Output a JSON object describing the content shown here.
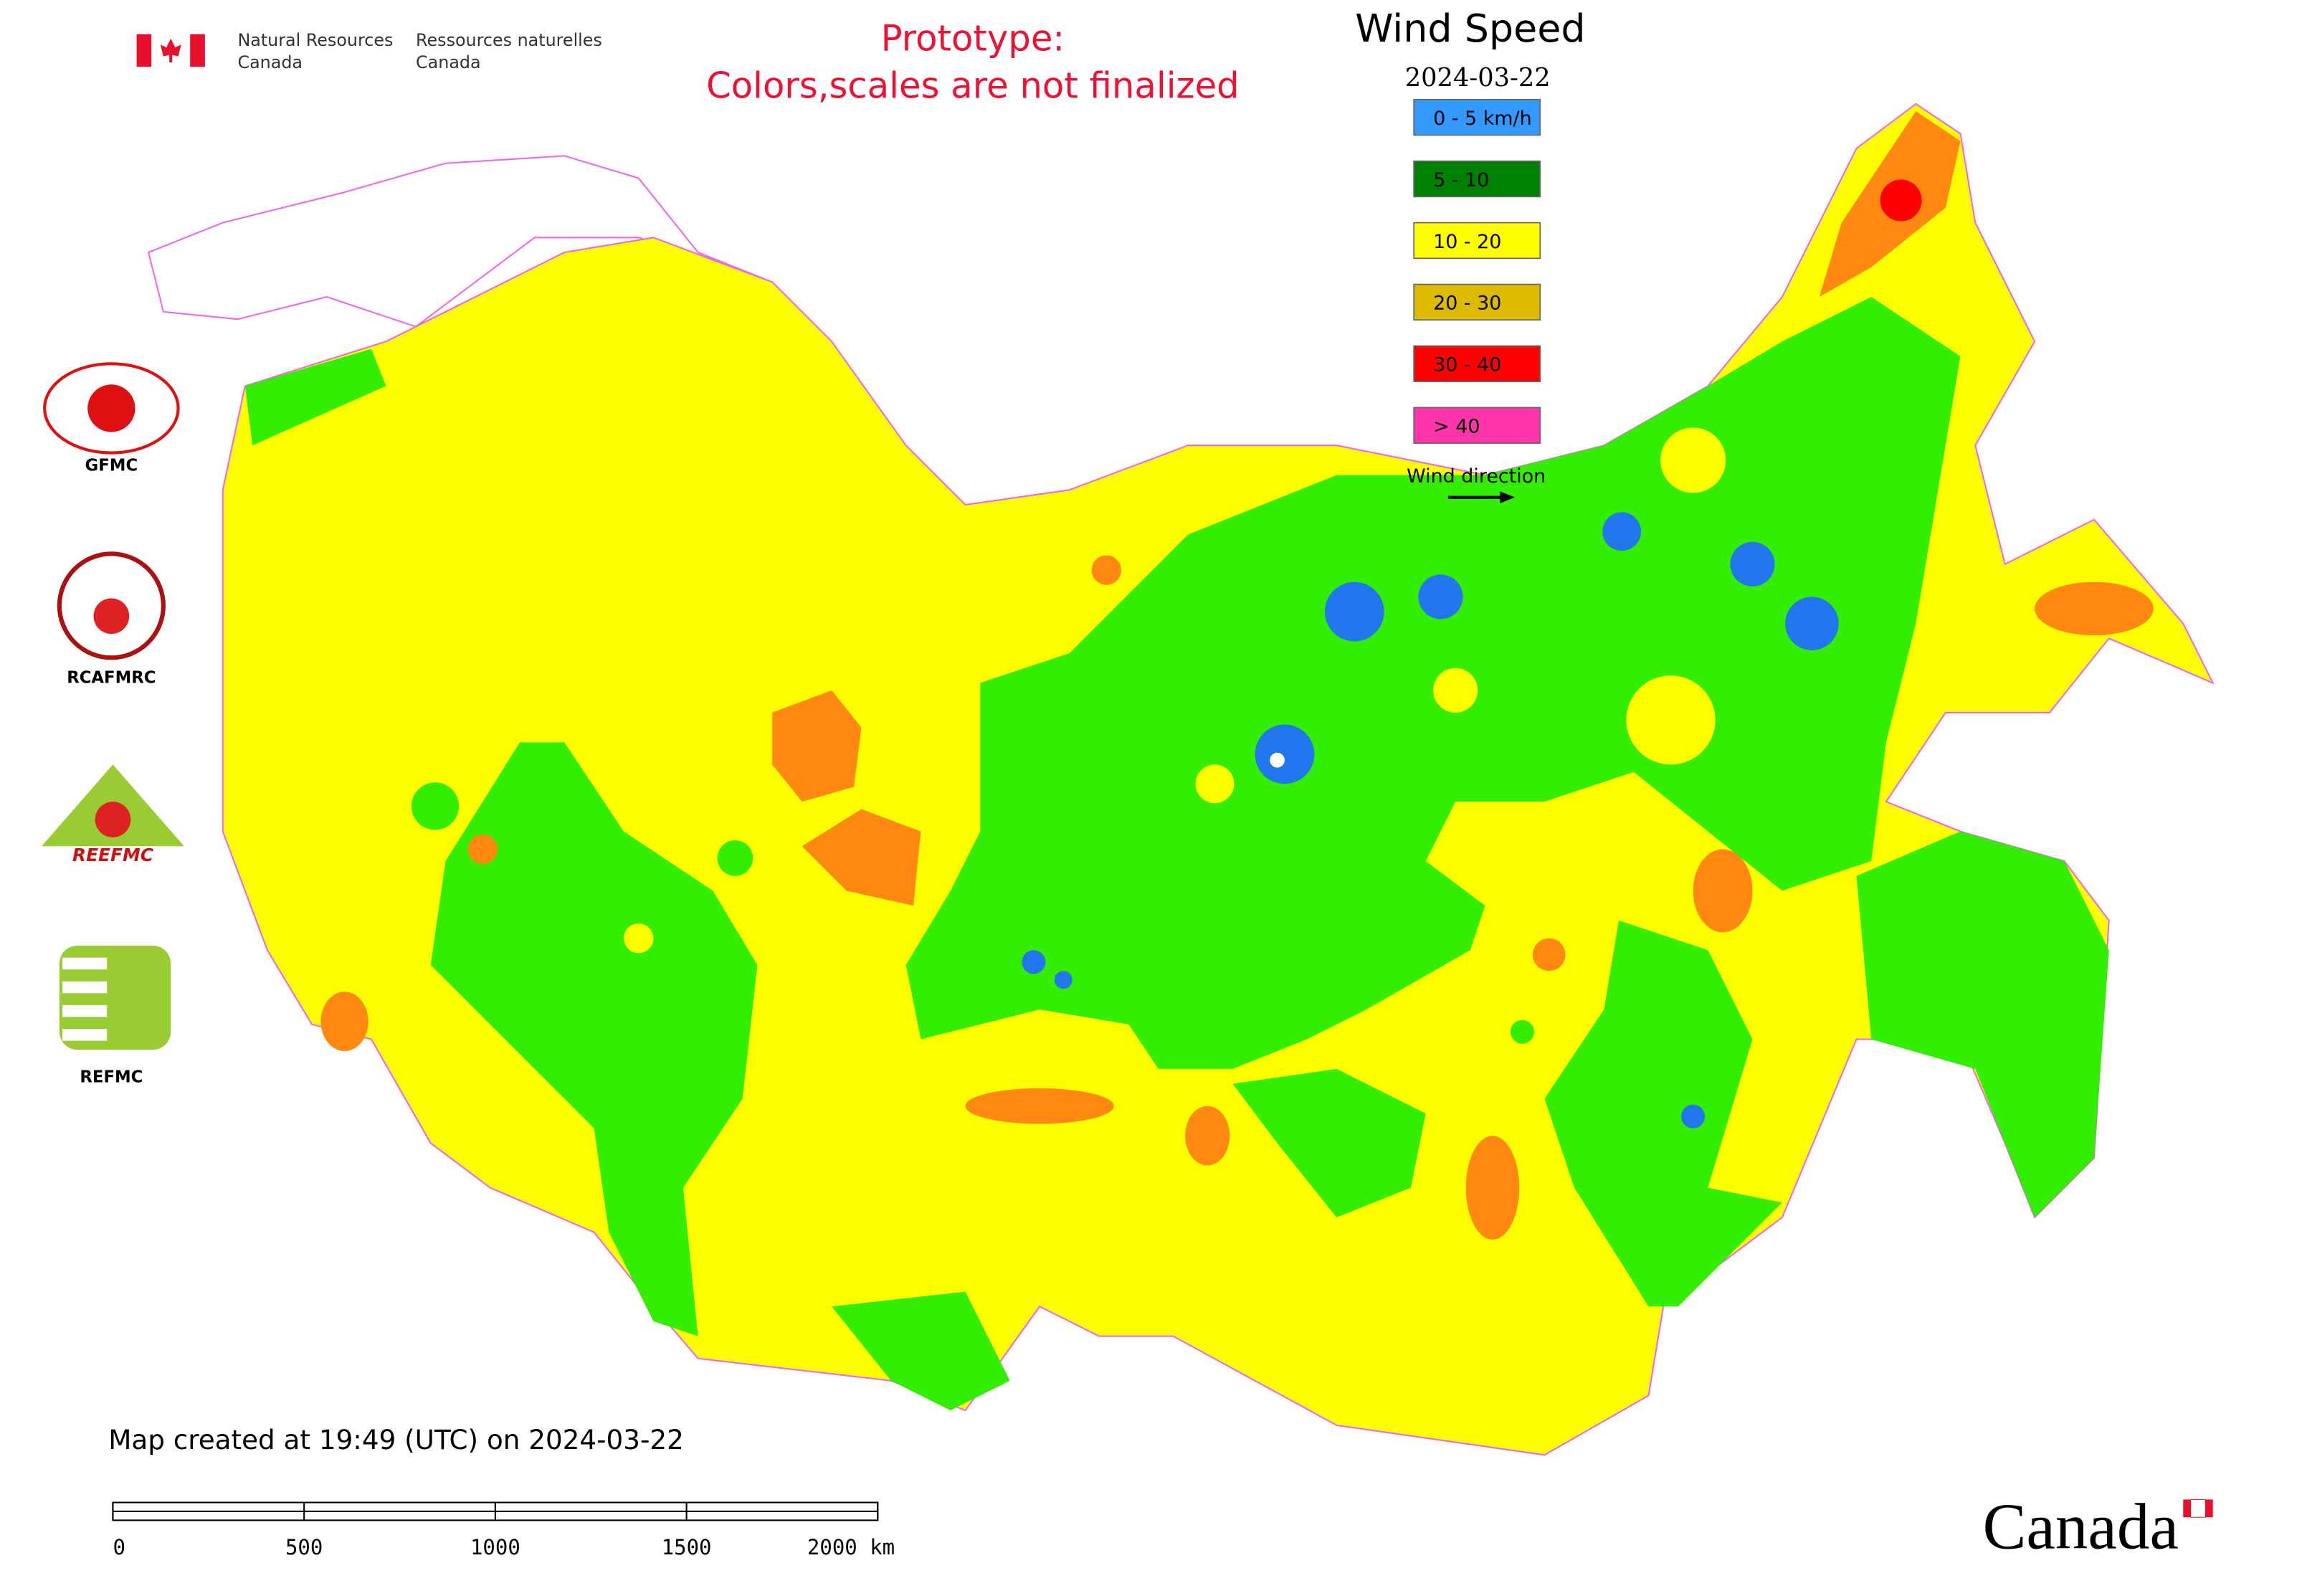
{
  "header": {
    "agency_en": "Natural Resources",
    "agency_en_2": "Canada",
    "agency_fr": "Ressources naturelles",
    "agency_fr_2": "Canada"
  },
  "notice": {
    "line1": "Prototype:",
    "line2": "Colors,scales are not finalized"
  },
  "legend": {
    "title": "Wind Speed",
    "date": "2024-03-22",
    "items": [
      {
        "label": "0 - 5 km/h",
        "color": "#3399ff"
      },
      {
        "label": "5 - 10",
        "color": "#008000"
      },
      {
        "label": "10 - 20",
        "color": "#ffff00"
      },
      {
        "label": "20 - 30",
        "color": "#ddbb00"
      },
      {
        "label": "30 - 40",
        "color": "#ff0000"
      },
      {
        "label": "> 40",
        "color": "#ff33aa"
      }
    ],
    "direction": "Wind direction"
  },
  "logos": {
    "gfmc": "GFMC",
    "rcafmrc": "RCAFMRC",
    "reefmc": "REEFMC",
    "refmc": "REFMC"
  },
  "footer": {
    "created": "Map created at 19:49 (UTC) on 2024-03-22",
    "scale_ticks": [
      "0",
      "500",
      "1000",
      "1500",
      "2000 km"
    ],
    "wordmark": "Canada"
  }
}
